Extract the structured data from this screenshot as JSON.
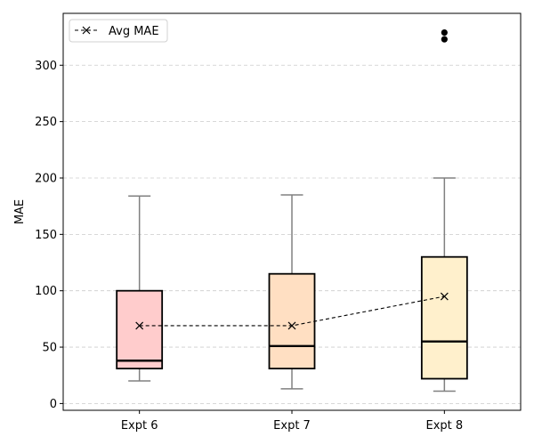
{
  "chart_data": {
    "type": "box",
    "ylabel": "MAE",
    "ylim": [
      -6,
      346
    ],
    "yticks": [
      0,
      50,
      100,
      150,
      200,
      250,
      300
    ],
    "grid": "y-dashed",
    "legend": {
      "position": "top-left",
      "label": "Avg MAE"
    },
    "categories": [
      "Expt 6",
      "Expt 7",
      "Expt 8"
    ],
    "boxes": [
      {
        "name": "Expt 6",
        "whisker_low": 20,
        "q1": 31,
        "median": 38,
        "q3": 100,
        "whisker_high": 184,
        "mean": 69,
        "outliers": [],
        "color": "#ffcccc"
      },
      {
        "name": "Expt 7",
        "whisker_low": 13,
        "q1": 31,
        "median": 51,
        "q3": 115,
        "whisker_high": 185,
        "mean": 69,
        "outliers": [],
        "color": "#ffdfc2"
      },
      {
        "name": "Expt 8",
        "whisker_low": 11,
        "q1": 22,
        "median": 55,
        "q3": 130,
        "whisker_high": 200,
        "mean": 95,
        "outliers": [
          323,
          329
        ],
        "color": "#fff0cc"
      }
    ]
  }
}
